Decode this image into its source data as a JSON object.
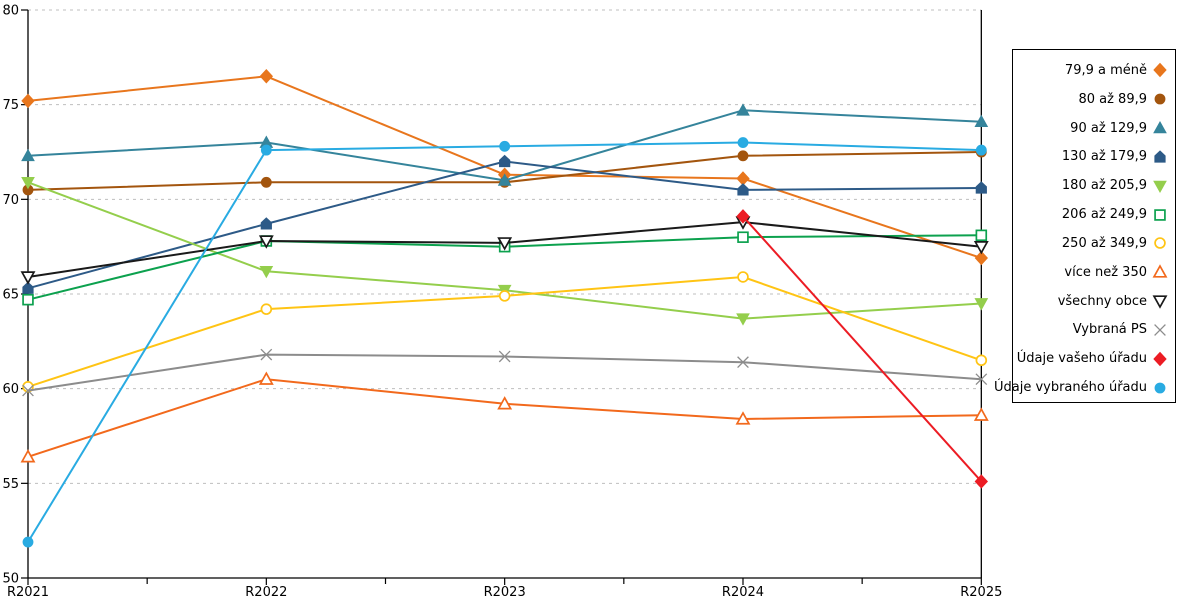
{
  "chart_data": {
    "type": "line",
    "title": "",
    "xlabel": "",
    "ylabel": "",
    "ylim": [
      50,
      80
    ],
    "ytick_step": 5,
    "grid": "horizontal-dashed",
    "legend_position": "right",
    "categories": [
      "R2021",
      "R2022",
      "R2023",
      "R2024",
      "R2025"
    ],
    "y_tick_labels": [
      "80",
      "75",
      "70",
      "65",
      "60",
      "55",
      "50"
    ],
    "series": [
      {
        "name": "79,9 a méně",
        "color": "#E8761D",
        "marker": "diamond",
        "filled": true,
        "values": [
          75.2,
          76.5,
          71.3,
          71.1,
          66.9
        ]
      },
      {
        "name": "80 až 89,9",
        "color": "#A3550E",
        "marker": "circle",
        "filled": true,
        "values": [
          70.5,
          70.9,
          70.9,
          72.3,
          72.5
        ]
      },
      {
        "name": "90 až 129,9",
        "color": "#35849B",
        "marker": "triangle-up",
        "filled": true,
        "values": [
          72.3,
          73.0,
          71.0,
          74.7,
          74.1
        ]
      },
      {
        "name": "130 až 179,9",
        "color": "#2D5A87",
        "marker": "pentagon",
        "filled": true,
        "values": [
          65.3,
          68.7,
          72.0,
          70.5,
          70.6
        ]
      },
      {
        "name": "180 až 205,9",
        "color": "#94CE4C",
        "marker": "triangle-down",
        "filled": true,
        "values": [
          70.9,
          66.2,
          65.2,
          63.7,
          64.5
        ]
      },
      {
        "name": "206 až 249,9",
        "color": "#0CA14E",
        "marker": "square",
        "filled": false,
        "values": [
          64.7,
          67.8,
          67.5,
          68.0,
          68.1
        ]
      },
      {
        "name": "250 až 349,9",
        "color": "#FFC414",
        "marker": "circle",
        "filled": false,
        "values": [
          60.1,
          64.2,
          64.9,
          65.9,
          61.5
        ]
      },
      {
        "name": "více než 350",
        "color": "#F2691C",
        "marker": "triangle-up",
        "filled": false,
        "values": [
          56.4,
          60.5,
          59.2,
          58.4,
          58.6
        ]
      },
      {
        "name": "všechny obce",
        "color": "#1A1A1A",
        "marker": "triangle-down",
        "filled": false,
        "values": [
          65.9,
          67.8,
          67.7,
          68.8,
          67.5
        ]
      },
      {
        "name": "Vybraná PS",
        "color": "#8C8C8C",
        "marker": "x",
        "filled": false,
        "values": [
          59.9,
          61.8,
          61.7,
          61.4,
          60.5
        ]
      },
      {
        "name": "Údaje vašeho úřadu",
        "color": "#EC1C24",
        "marker": "diamond",
        "filled": true,
        "values": [
          null,
          null,
          null,
          69.1,
          55.1
        ]
      },
      {
        "name": "Údaje vybraného úřadu",
        "color": "#29ABE2",
        "marker": "circle",
        "filled": true,
        "values": [
          51.9,
          72.6,
          72.8,
          73.0,
          72.6
        ]
      }
    ]
  },
  "colors": {
    "gridline": "#BFBFBF",
    "axis": "#000000",
    "background": "#FFFFFF"
  }
}
